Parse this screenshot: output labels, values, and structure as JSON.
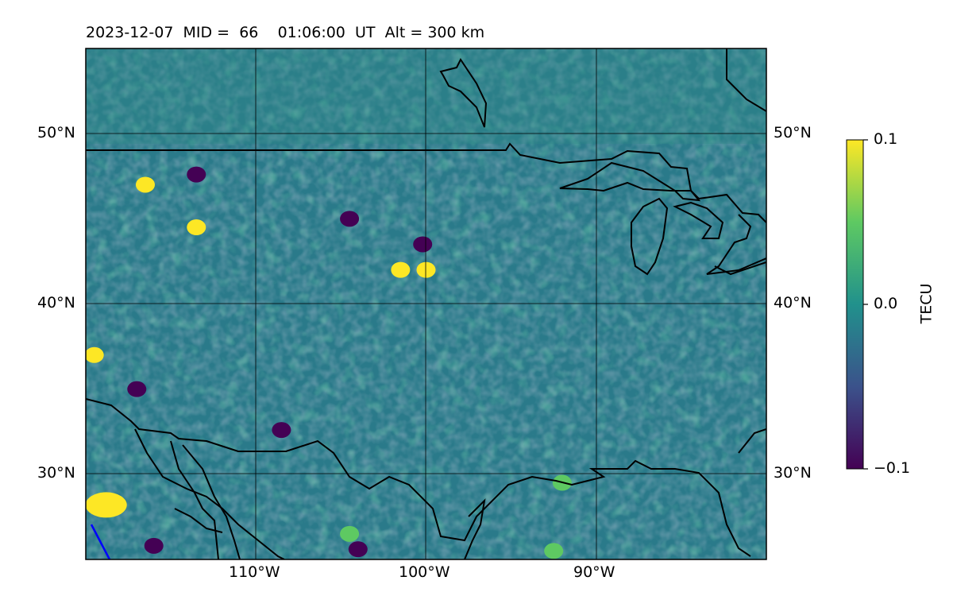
{
  "header": {
    "date": "2023-12-07",
    "mid_label": "MID =",
    "mid_value": "66",
    "time": "01:06:00",
    "time_unit": "UT",
    "alt_label": "Alt = 300 km"
  },
  "map": {
    "lon_range": [
      -120,
      -80
    ],
    "lat_range": [
      25,
      55
    ],
    "lat_labels_left": [
      "50°N",
      "40°N",
      "30°N"
    ],
    "lat_labels_right": [
      "50°N",
      "40°N",
      "30°N"
    ],
    "lon_labels": [
      "110°W",
      "100°W",
      "90°W"
    ],
    "gridlines": true
  },
  "colorbar": {
    "title": "TECU",
    "range": [
      -0.1,
      0.1
    ],
    "tick_labels": [
      "0.1",
      "0.0",
      "−0.1"
    ],
    "colormap": "viridis",
    "colors": [
      "#440154",
      "#3b528b",
      "#21918c",
      "#5ec962",
      "#fde725"
    ]
  },
  "anomalies": [
    {
      "lon": -118.8,
      "lat": 28.2,
      "value": 0.1
    },
    {
      "lon": -116.5,
      "lat": 47.0,
      "value": 0.1
    },
    {
      "lon": -113.5,
      "lat": 44.5,
      "value": 0.1
    },
    {
      "lon": -101.5,
      "lat": 42.0,
      "value": 0.1
    },
    {
      "lon": -100.0,
      "lat": 42.0,
      "value": 0.1
    },
    {
      "lon": -119.5,
      "lat": 37.0,
      "value": 0.1
    },
    {
      "lon": -116.0,
      "lat": 25.8,
      "value": -0.1
    },
    {
      "lon": -104.0,
      "lat": 25.6,
      "value": -0.1
    },
    {
      "lon": -108.5,
      "lat": 32.6,
      "value": -0.1
    },
    {
      "lon": -100.2,
      "lat": 43.5,
      "value": -0.1
    },
    {
      "lon": -117.0,
      "lat": 35.0,
      "value": -0.09
    },
    {
      "lon": -104.5,
      "lat": 45.0,
      "value": -0.09
    },
    {
      "lon": -113.5,
      "lat": 47.6,
      "value": -0.08
    },
    {
      "lon": -92.0,
      "lat": 29.5,
      "value": 0.06
    },
    {
      "lon": -92.5,
      "lat": 25.5,
      "value": 0.06
    },
    {
      "lon": -104.5,
      "lat": 26.5,
      "value": 0.06
    }
  ]
}
